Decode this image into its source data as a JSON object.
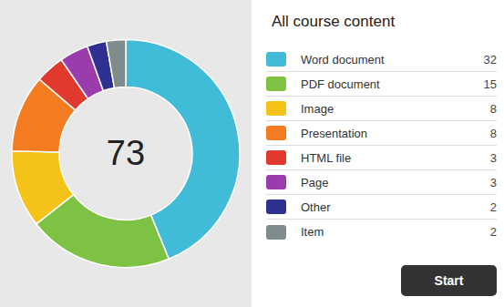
{
  "chart_data": {
    "type": "pie",
    "title": "All course content",
    "categories": [
      "Word document",
      "PDF document",
      "Image",
      "Presentation",
      "HTML file",
      "Page",
      "Other",
      "Item"
    ],
    "values": [
      32,
      15,
      8,
      8,
      3,
      3,
      2,
      2
    ],
    "colors": [
      "#40bcd8",
      "#7dc242",
      "#f5c318",
      "#f47c20",
      "#e03a2f",
      "#9b3cac",
      "#2e3191",
      "#7f8c8d"
    ],
    "legend": "right",
    "annotations": [
      "73",
      "Start"
    ]
  }
}
